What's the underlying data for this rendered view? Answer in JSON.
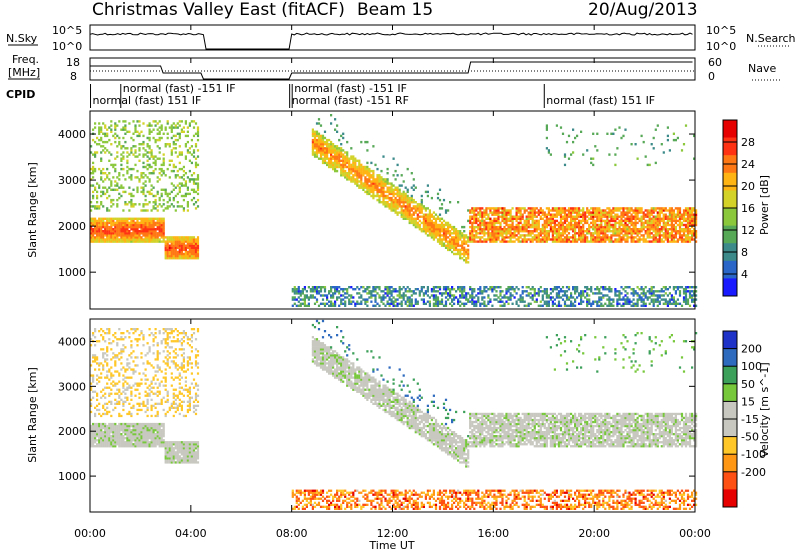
{
  "header": {
    "title": "Christmas Valley East (fitACF)",
    "beam": "Beam 15",
    "date": "20/Aug/2013"
  },
  "top_panels": {
    "nsky_label": "N.Sky",
    "nsky_ticks": [
      "10^5",
      "10^0"
    ],
    "nsearch_label": "N.Search",
    "nsearch_ticks": [
      "10^5",
      "10^0"
    ],
    "freq_label_1": "Freq.",
    "freq_label_2": "[MHz]",
    "freq_ticks": [
      "18",
      "8"
    ],
    "nave_label": "Nave",
    "nave_ticks": [
      "60",
      "0"
    ],
    "cpid_label": "CPID",
    "cpid_entries": [
      {
        "text": "normal (fast) 151 IF",
        "t": 0.1
      },
      {
        "text": "normal (fast) -151 IF",
        "t": 1.3
      },
      {
        "text": "normal (fast) -151 IF",
        "t": 8.1
      },
      {
        "text": "normal (fast) -151 RF",
        "t": 8.0
      },
      {
        "text": "normal (fast) 151 IF",
        "t": 18.1
      }
    ]
  },
  "chart_data": [
    {
      "type": "heatmap",
      "panel": "power",
      "ylabel": "Slant Range [km]",
      "xlabel": "Time UT",
      "xlim": [
        0,
        24
      ],
      "ylim": [
        200,
        4500
      ],
      "x_ticks": [
        "00:00",
        "04:00",
        "08:00",
        "12:00",
        "16:00",
        "20:00",
        "00:00"
      ],
      "y_ticks": [
        1000,
        2000,
        3000,
        4000
      ],
      "colorbar": {
        "label": "Power [dB]",
        "ticks": [
          4,
          8,
          12,
          16,
          20,
          24,
          28
        ],
        "range": [
          0,
          32
        ],
        "colors": [
          "#1a1aff",
          "#2a66c8",
          "#3c8a8a",
          "#57a857",
          "#8cc83c",
          "#d2d228",
          "#ffb414",
          "#ff7814",
          "#ff3214",
          "#e60000"
        ]
      },
      "data_gaps_hours": [
        [
          4.5,
          7.9
        ]
      ],
      "features": [
        {
          "name": "main band",
          "time_hours": [
            0,
            4.3
          ],
          "range_km": [
            1300,
            2100
          ],
          "level_db": 26
        },
        {
          "name": "descending band",
          "time_hours": [
            8.8,
            15
          ],
          "range_km": [
            1400,
            3800
          ],
          "level_db": 20
        },
        {
          "name": "late band",
          "time_hours": [
            15,
            24
          ],
          "range_km": [
            1700,
            2300
          ],
          "level_db": 24
        }
      ]
    },
    {
      "type": "heatmap",
      "panel": "velocity",
      "ylabel": "Slant Range [km]",
      "xlabel": "Time UT",
      "xlim": [
        0,
        24
      ],
      "ylim": [
        200,
        4500
      ],
      "x_ticks": [
        "00:00",
        "04:00",
        "08:00",
        "12:00",
        "16:00",
        "20:00",
        "00:00"
      ],
      "y_ticks": [
        1000,
        2000,
        3000,
        4000
      ],
      "colorbar": {
        "label": "Velocity [m s^-1]",
        "ticks": [
          200,
          100,
          50,
          15,
          -15,
          -50,
          -100,
          -200
        ],
        "colors": [
          "#1e32c8",
          "#2e6abe",
          "#3ca05a",
          "#78c83c",
          "#c8c8c0",
          "#c8c8c0",
          "#ffc828",
          "#ff9614",
          "#ff5014",
          "#e60000"
        ]
      },
      "features": [
        {
          "name": "ground scatter",
          "time_hours": [
            15,
            24
          ],
          "range_km": [
            1300,
            2400
          ],
          "velocity_ms": 0
        },
        {
          "name": "ionospheric scatter",
          "time_hours": [
            0,
            4.3
          ],
          "range_km": [
            2400,
            4300
          ],
          "velocity_ms": -40
        }
      ]
    }
  ]
}
